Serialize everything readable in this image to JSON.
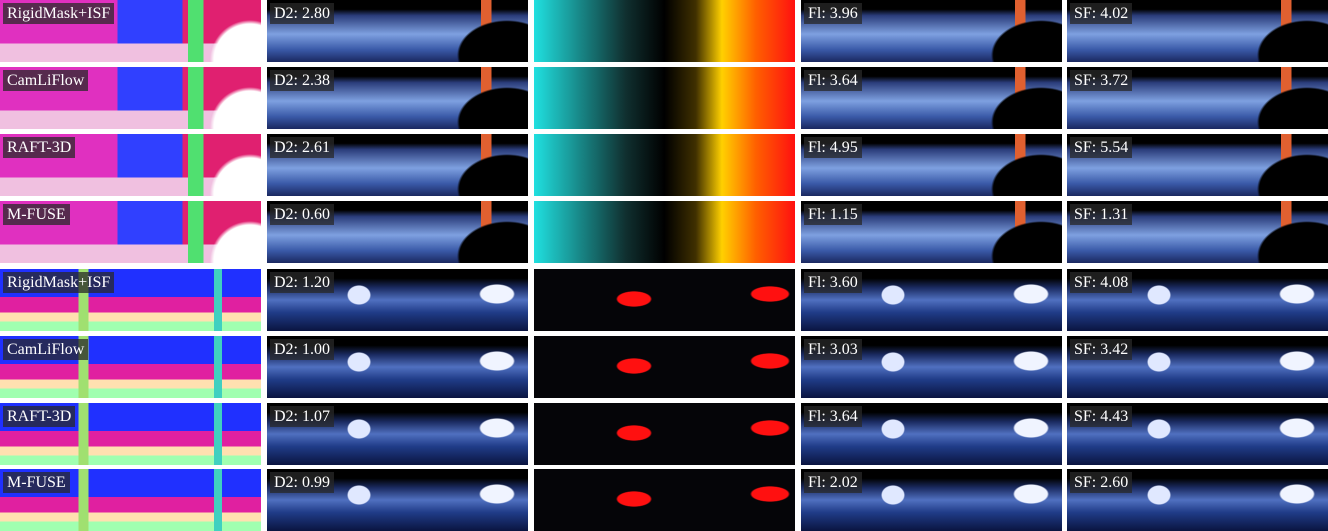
{
  "rows": [
    {
      "method": "RigidMask+ISF",
      "d2": "D2: 2.80",
      "fl": "Fl: 3.96",
      "sf": "SF: 4.02"
    },
    {
      "method": "CamLiFlow",
      "d2": "D2: 2.38",
      "fl": "Fl: 3.64",
      "sf": "SF: 3.72"
    },
    {
      "method": "RAFT-3D",
      "d2": "D2: 2.61",
      "fl": "Fl: 4.95",
      "sf": "SF: 5.54"
    },
    {
      "method": "M-FUSE",
      "d2": "D2: 0.60",
      "fl": "Fl: 1.15",
      "sf": "SF: 1.31"
    },
    {
      "method": "RigidMask+ISF",
      "d2": "D2: 1.20",
      "fl": "Fl: 3.60",
      "sf": "SF: 4.08"
    },
    {
      "method": "CamLiFlow",
      "d2": "D2: 1.00",
      "fl": "Fl: 3.03",
      "sf": "SF: 3.42"
    },
    {
      "method": "RAFT-3D",
      "d2": "D2: 1.07",
      "fl": "Fl: 3.64",
      "sf": "SF: 4.43"
    },
    {
      "method": "M-FUSE",
      "d2": "D2: 0.99",
      "fl": "Fl: 2.02",
      "sf": "SF: 2.60"
    }
  ]
}
